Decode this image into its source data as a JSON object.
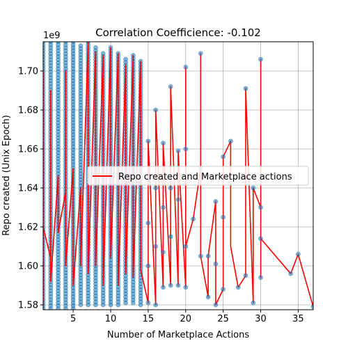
{
  "chart_data": {
    "type": "scatter",
    "title": "Correlation Coefficience: -0.102",
    "xlabel": "Number of Marketplace Actions",
    "ylabel": "Repo created (Unix Epoch)",
    "y_multiplier_label": "1e9",
    "xlim": [
      1,
      37
    ],
    "ylim": [
      1.5775,
      1.715
    ],
    "x_ticks": [
      5,
      10,
      15,
      20,
      25,
      30,
      35
    ],
    "y_ticks": [
      1.58,
      1.6,
      1.62,
      1.64,
      1.66,
      1.68,
      1.7
    ],
    "y_tick_labels": [
      "1.58",
      "1.60",
      "1.62",
      "1.64",
      "1.66",
      "1.68",
      "1.70"
    ],
    "grid": true,
    "legend": {
      "label": "Repo created and Marketplace actions",
      "placement": "center-right"
    },
    "colors": {
      "line": "#ff0000",
      "points": "#1f77b4",
      "grid": "#b0b0b0"
    },
    "dense_columns": [
      {
        "x": 1,
        "y_min": 1.578,
        "y_max": 1.715
      },
      {
        "x": 2,
        "y_min": 1.578,
        "y_max": 1.715
      },
      {
        "x": 3,
        "y_min": 1.578,
        "y_max": 1.715
      },
      {
        "x": 4,
        "y_min": 1.578,
        "y_max": 1.715
      },
      {
        "x": 5,
        "y_min": 1.578,
        "y_max": 1.715
      },
      {
        "x": 6,
        "y_min": 1.58,
        "y_max": 1.713
      },
      {
        "x": 7,
        "y_min": 1.58,
        "y_max": 1.715
      },
      {
        "x": 8,
        "y_min": 1.58,
        "y_max": 1.712
      },
      {
        "x": 9,
        "y_min": 1.58,
        "y_max": 1.709
      },
      {
        "x": 10,
        "y_min": 1.58,
        "y_max": 1.712
      },
      {
        "x": 11,
        "y_min": 1.58,
        "y_max": 1.709
      },
      {
        "x": 12,
        "y_min": 1.581,
        "y_max": 1.706
      },
      {
        "x": 13,
        "y_min": 1.581,
        "y_max": 1.708
      },
      {
        "x": 14,
        "y_min": 1.58,
        "y_max": 1.705
      }
    ],
    "sparse_points": [
      {
        "x": 15,
        "y": 1.581
      },
      {
        "x": 15,
        "y": 1.6
      },
      {
        "x": 15,
        "y": 1.622
      },
      {
        "x": 15,
        "y": 1.644
      },
      {
        "x": 15,
        "y": 1.664
      },
      {
        "x": 16,
        "y": 1.58
      },
      {
        "x": 16,
        "y": 1.61
      },
      {
        "x": 16,
        "y": 1.64
      },
      {
        "x": 16,
        "y": 1.68
      },
      {
        "x": 17,
        "y": 1.589
      },
      {
        "x": 17,
        "y": 1.607
      },
      {
        "x": 17,
        "y": 1.63
      },
      {
        "x": 17,
        "y": 1.663
      },
      {
        "x": 18,
        "y": 1.59
      },
      {
        "x": 18,
        "y": 1.615
      },
      {
        "x": 18,
        "y": 1.64
      },
      {
        "x": 18,
        "y": 1.692
      },
      {
        "x": 19,
        "y": 1.59
      },
      {
        "x": 19,
        "y": 1.634
      },
      {
        "x": 19,
        "y": 1.659
      },
      {
        "x": 20,
        "y": 1.589
      },
      {
        "x": 20,
        "y": 1.61
      },
      {
        "x": 20,
        "y": 1.66
      },
      {
        "x": 20,
        "y": 1.702
      },
      {
        "x": 21,
        "y": 1.624
      },
      {
        "x": 22,
        "y": 1.605
      },
      {
        "x": 22,
        "y": 1.65
      },
      {
        "x": 22,
        "y": 1.709
      },
      {
        "x": 23,
        "y": 1.584
      },
      {
        "x": 23,
        "y": 1.605
      },
      {
        "x": 24,
        "y": 1.58
      },
      {
        "x": 24,
        "y": 1.601
      },
      {
        "x": 24,
        "y": 1.633
      },
      {
        "x": 25,
        "y": 1.588
      },
      {
        "x": 25,
        "y": 1.625
      },
      {
        "x": 25,
        "y": 1.656
      },
      {
        "x": 26,
        "y": 1.664
      },
      {
        "x": 27,
        "y": 1.589
      },
      {
        "x": 28,
        "y": 1.691
      },
      {
        "x": 28,
        "y": 1.595
      },
      {
        "x": 29,
        "y": 1.581
      },
      {
        "x": 29,
        "y": 1.64
      },
      {
        "x": 30,
        "y": 1.594
      },
      {
        "x": 30,
        "y": 1.614
      },
      {
        "x": 30,
        "y": 1.63
      },
      {
        "x": 30,
        "y": 1.706
      },
      {
        "x": 34,
        "y": 1.596
      },
      {
        "x": 35,
        "y": 1.606
      },
      {
        "x": 37,
        "y": 1.579
      }
    ],
    "line_path": [
      [
        1,
        1.646
      ],
      [
        1,
        1.58
      ],
      [
        1,
        1.7
      ],
      [
        1,
        1.62
      ],
      [
        2,
        1.604
      ],
      [
        2,
        1.69
      ],
      [
        2,
        1.592
      ],
      [
        3,
        1.646
      ],
      [
        3,
        1.617
      ],
      [
        4,
        1.638
      ],
      [
        4,
        1.7
      ],
      [
        4,
        1.6
      ],
      [
        5,
        1.65
      ],
      [
        5,
        1.59
      ],
      [
        6,
        1.64
      ],
      [
        6,
        1.6
      ],
      [
        7,
        1.715
      ],
      [
        7,
        1.596
      ],
      [
        8,
        1.71
      ],
      [
        8,
        1.6
      ],
      [
        9,
        1.708
      ],
      [
        9,
        1.59
      ],
      [
        10,
        1.712
      ],
      [
        10,
        1.604
      ],
      [
        11,
        1.709
      ],
      [
        11,
        1.59
      ],
      [
        12,
        1.703
      ],
      [
        12,
        1.596
      ],
      [
        13,
        1.708
      ],
      [
        13,
        1.594
      ],
      [
        14,
        1.705
      ],
      [
        14,
        1.598
      ],
      [
        15,
        1.581
      ],
      [
        15,
        1.664
      ],
      [
        16,
        1.58
      ],
      [
        16,
        1.68
      ],
      [
        17,
        1.589
      ],
      [
        17,
        1.663
      ],
      [
        18,
        1.59
      ],
      [
        18,
        1.692
      ],
      [
        19,
        1.59
      ],
      [
        19,
        1.659
      ],
      [
        20,
        1.589
      ],
      [
        20,
        1.702
      ],
      [
        20,
        1.61
      ],
      [
        21,
        1.624
      ],
      [
        22,
        1.65
      ],
      [
        22,
        1.709
      ],
      [
        22,
        1.605
      ],
      [
        23,
        1.584
      ],
      [
        23,
        1.605
      ],
      [
        24,
        1.633
      ],
      [
        24,
        1.58
      ],
      [
        25,
        1.588
      ],
      [
        25,
        1.656
      ],
      [
        26,
        1.664
      ],
      [
        26,
        1.61
      ],
      [
        27,
        1.589
      ],
      [
        28,
        1.595
      ],
      [
        28,
        1.691
      ],
      [
        29,
        1.581
      ],
      [
        29,
        1.64
      ],
      [
        30,
        1.63
      ],
      [
        30,
        1.706
      ],
      [
        30,
        1.594
      ],
      [
        30,
        1.614
      ],
      [
        34,
        1.596
      ],
      [
        35,
        1.606
      ],
      [
        37,
        1.579
      ]
    ]
  }
}
